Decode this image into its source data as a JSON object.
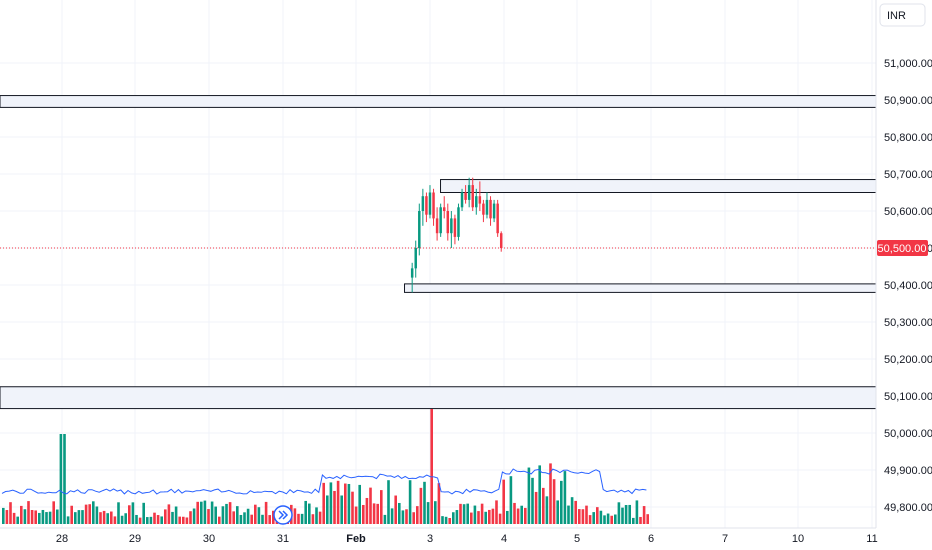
{
  "chart_data": {
    "type": "candlestick",
    "currency": "INR",
    "price_axis": {
      "ylim": [
        49750,
        51130
      ],
      "ticks": [
        "51,000.00",
        "50,900.00",
        "50,800.00",
        "50,700.00",
        "50,600.00",
        "50,500.00",
        "50,400.00",
        "50,300.00",
        "50,200.00",
        "50,100.00",
        "50,000.00",
        "49,900.00",
        "49,800.00"
      ],
      "tick_values": [
        51000,
        50900,
        50800,
        50700,
        50600,
        50500,
        50400,
        50300,
        50200,
        50100,
        50000,
        49900,
        49800
      ]
    },
    "current_price": {
      "value": 50500,
      "label": "50,500.00",
      "color": "#f23645"
    },
    "time_axis": {
      "labels": [
        {
          "text": "28",
          "bold": false
        },
        {
          "text": "29",
          "bold": false
        },
        {
          "text": "30",
          "bold": false
        },
        {
          "text": "31",
          "bold": false
        },
        {
          "text": "Feb",
          "bold": true
        },
        {
          "text": "3",
          "bold": false
        },
        {
          "text": "4",
          "bold": false
        },
        {
          "text": "5",
          "bold": false
        },
        {
          "text": "6",
          "bold": false
        },
        {
          "text": "7",
          "bold": false
        },
        {
          "text": "10",
          "bold": false
        },
        {
          "text": "11",
          "bold": false
        }
      ]
    },
    "zones": [
      {
        "low": 50880,
        "high": 50912,
        "from": "start",
        "to": "end"
      },
      {
        "low": 50650,
        "high": 50685,
        "from_day": 5.15,
        "to": "end"
      },
      {
        "low": 50380,
        "high": 50403,
        "from_day": 4.66,
        "to": "end"
      },
      {
        "low": 50066,
        "high": 50125,
        "from": "start",
        "to": "end"
      }
    ],
    "candles_window": {
      "from_day": 4.74,
      "to_day": 6.0
    },
    "candles": [
      {
        "o": 50420,
        "h": 50460,
        "l": 50380,
        "c": 50445
      },
      {
        "o": 50445,
        "h": 50520,
        "l": 50420,
        "c": 50500
      },
      {
        "o": 50500,
        "h": 50620,
        "l": 50480,
        "c": 50600
      },
      {
        "o": 50600,
        "h": 50660,
        "l": 50560,
        "c": 50640
      },
      {
        "o": 50640,
        "h": 50650,
        "l": 50570,
        "c": 50590
      },
      {
        "o": 50590,
        "h": 50670,
        "l": 50580,
        "c": 50650
      },
      {
        "o": 50650,
        "h": 50660,
        "l": 50560,
        "c": 50580
      },
      {
        "o": 50580,
        "h": 50610,
        "l": 50520,
        "c": 50540
      },
      {
        "o": 50540,
        "h": 50620,
        "l": 50530,
        "c": 50610
      },
      {
        "o": 50610,
        "h": 50640,
        "l": 50580,
        "c": 50600
      },
      {
        "o": 50600,
        "h": 50620,
        "l": 50520,
        "c": 50540
      },
      {
        "o": 50540,
        "h": 50600,
        "l": 50500,
        "c": 50580
      },
      {
        "o": 50580,
        "h": 50590,
        "l": 50510,
        "c": 50530
      },
      {
        "o": 50530,
        "h": 50620,
        "l": 50520,
        "c": 50610
      },
      {
        "o": 50610,
        "h": 50660,
        "l": 50600,
        "c": 50650
      },
      {
        "o": 50650,
        "h": 50670,
        "l": 50620,
        "c": 50630
      },
      {
        "o": 50630,
        "h": 50690,
        "l": 50610,
        "c": 50670
      },
      {
        "o": 50670,
        "h": 50690,
        "l": 50600,
        "c": 50610
      },
      {
        "o": 50610,
        "h": 50660,
        "l": 50590,
        "c": 50640
      },
      {
        "o": 50640,
        "h": 50680,
        "l": 50600,
        "c": 50620
      },
      {
        "o": 50620,
        "h": 50630,
        "l": 50570,
        "c": 50590
      },
      {
        "o": 50590,
        "h": 50650,
        "l": 50580,
        "c": 50630
      },
      {
        "o": 50630,
        "h": 50640,
        "l": 50560,
        "c": 50580
      },
      {
        "o": 50580,
        "h": 50630,
        "l": 50570,
        "c": 50620
      },
      {
        "o": 50620,
        "h": 50630,
        "l": 50530,
        "c": 50540
      },
      {
        "o": 50540,
        "h": 50545,
        "l": 50490,
        "c": 50500
      }
    ],
    "colors": {
      "up": "#089981",
      "down": "#f23645",
      "zone_fill": "#f0f3fa",
      "zone_border": "#131722",
      "grid": "#f0f3fa",
      "ma_line": "#2962ff",
      "volume_up": "#089981",
      "volume_down": "#f23645"
    }
  },
  "ui": {
    "currency_button": "INR",
    "scroll_to_latest_icon": "double-chevron-right-icon"
  }
}
